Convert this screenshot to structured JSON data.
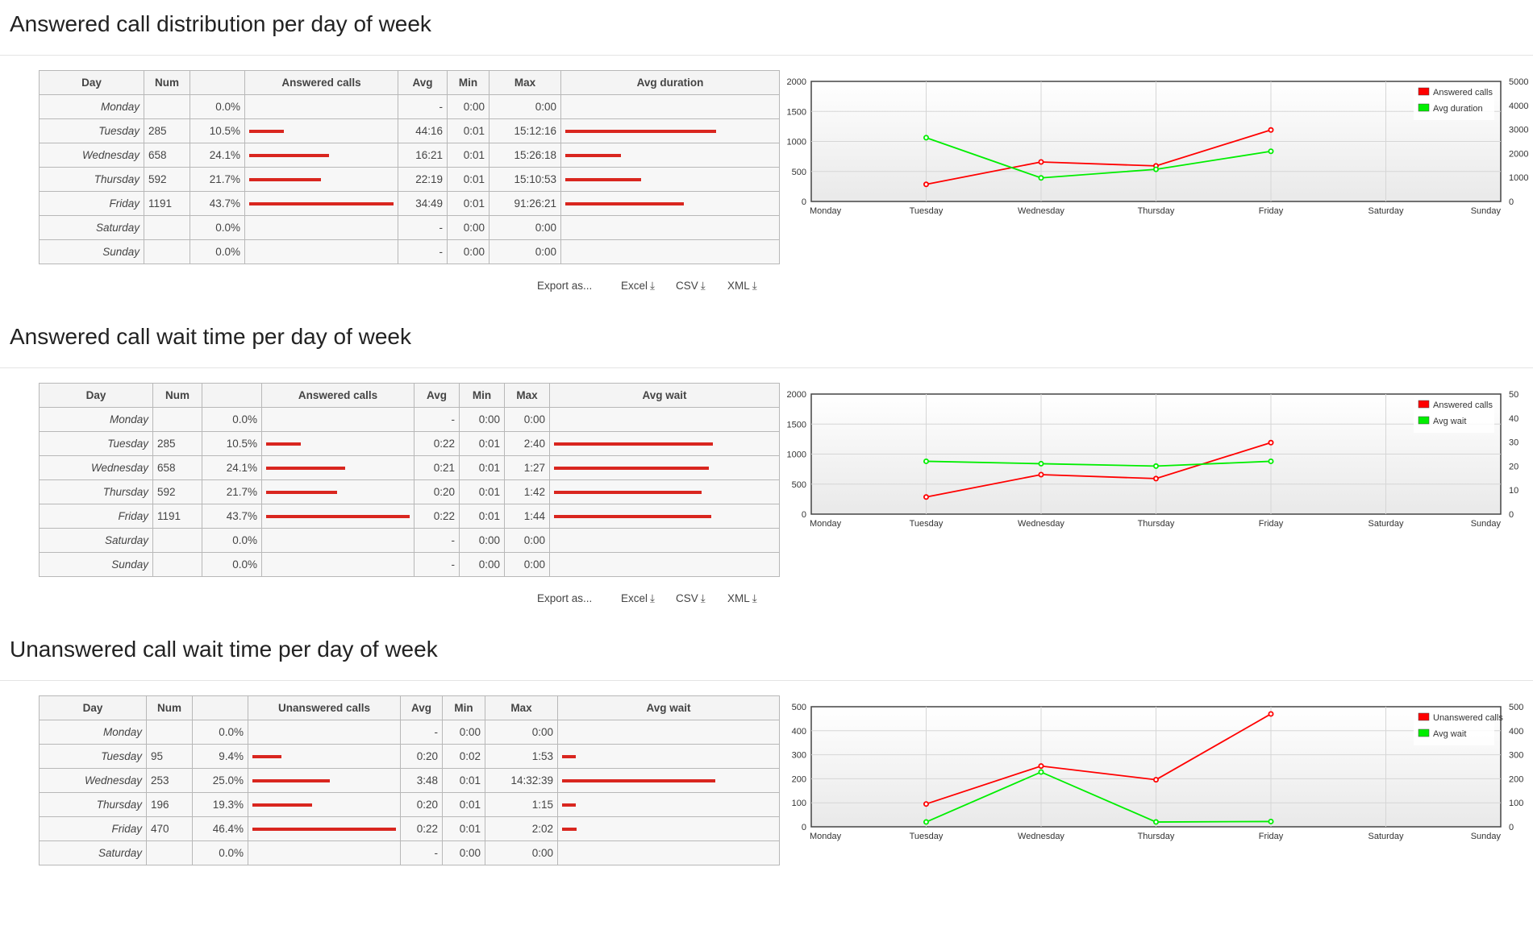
{
  "sections": [
    {
      "title": "Answered call distribution per day of week",
      "headers": [
        "Day",
        "Num",
        "",
        "Answered calls",
        "Avg",
        "Min",
        "Max",
        "Avg duration"
      ],
      "colwidths": [
        130,
        57,
        68,
        190,
        61,
        52,
        89,
        271
      ],
      "rows": [
        {
          "day": "Monday",
          "num": "",
          "pct": "0.0%",
          "bar": 0,
          "avg": "-",
          "min": "0:00",
          "max": "0:00",
          "bar2": 0
        },
        {
          "day": "Tuesday",
          "num": "285",
          "pct": "10.5%",
          "bar": 0.239,
          "avg": "44:16",
          "min": "0:01",
          "max": "15:12:16",
          "bar2": 1.0
        },
        {
          "day": "Wednesday",
          "num": "658",
          "pct": "24.1%",
          "bar": 0.552,
          "avg": "16:21",
          "min": "0:01",
          "max": "15:26:18",
          "bar2": 0.37
        },
        {
          "day": "Thursday",
          "num": "592",
          "pct": "21.7%",
          "bar": 0.497,
          "avg": "22:19",
          "min": "0:01",
          "max": "15:10:53",
          "bar2": 0.504
        },
        {
          "day": "Friday",
          "num": "1191",
          "pct": "43.7%",
          "bar": 1.0,
          "avg": "34:49",
          "min": "0:01",
          "max": "91:26:21",
          "bar2": 0.787
        },
        {
          "day": "Saturday",
          "num": "",
          "pct": "0.0%",
          "bar": 0,
          "avg": "-",
          "min": "0:00",
          "max": "0:00",
          "bar2": 0
        },
        {
          "day": "Sunday",
          "num": "",
          "pct": "0.0%",
          "bar": 0,
          "avg": "-",
          "min": "0:00",
          "max": "0:00",
          "bar2": 0
        }
      ],
      "export": {
        "label": "Export as...",
        "excel": "Excel",
        "csv": "CSV",
        "xml": "XML"
      },
      "chart_data": {
        "type": "line",
        "x": [
          "Monday",
          "Tuesday",
          "Wednesday",
          "Thursday",
          "Friday",
          "Saturday",
          "Sunday"
        ],
        "y_left_ticks": [
          "0",
          "500",
          "1000",
          "1500",
          "2000"
        ],
        "y_left_max": 2000,
        "y_right_ticks": [
          "0",
          "1000",
          "2000",
          "3000",
          "4000",
          "5000"
        ],
        "y_right_max": 5000,
        "series": [
          {
            "name": "Answered calls",
            "axis": "left",
            "color": "#ff0000",
            "values": [
              null,
              285,
              658,
              592,
              1191,
              null,
              null
            ]
          },
          {
            "name": "Avg duration",
            "axis": "right",
            "color": "#00ee00",
            "values": [
              null,
              2656,
              981,
              1339,
              2089,
              null,
              null
            ]
          }
        ],
        "legend": "top-right"
      }
    },
    {
      "title": "Answered call wait time per day of week",
      "headers": [
        "Day",
        "Num",
        "",
        "Answered calls",
        "Avg",
        "Min",
        "Max",
        "Avg wait"
      ],
      "colwidths": [
        141,
        61,
        74,
        189,
        56,
        56,
        56,
        285
      ],
      "rows": [
        {
          "day": "Monday",
          "num": "",
          "pct": "0.0%",
          "bar": 0,
          "avg": "-",
          "min": "0:00",
          "max": "0:00",
          "bar2": 0
        },
        {
          "day": "Tuesday",
          "num": "285",
          "pct": "10.5%",
          "bar": 0.239,
          "avg": "0:22",
          "min": "0:01",
          "max": "2:40",
          "bar2": 1.0
        },
        {
          "day": "Wednesday",
          "num": "658",
          "pct": "24.1%",
          "bar": 0.552,
          "avg": "0:21",
          "min": "0:01",
          "max": "1:27",
          "bar2": 0.972
        },
        {
          "day": "Thursday",
          "num": "592",
          "pct": "21.7%",
          "bar": 0.497,
          "avg": "0:20",
          "min": "0:01",
          "max": "1:42",
          "bar2": 0.93
        },
        {
          "day": "Friday",
          "num": "1191",
          "pct": "43.7%",
          "bar": 1.0,
          "avg": "0:22",
          "min": "0:01",
          "max": "1:44",
          "bar2": 0.986
        },
        {
          "day": "Saturday",
          "num": "",
          "pct": "0.0%",
          "bar": 0,
          "avg": "-",
          "min": "0:00",
          "max": "0:00",
          "bar2": 0
        },
        {
          "day": "Sunday",
          "num": "",
          "pct": "0.0%",
          "bar": 0,
          "avg": "-",
          "min": "0:00",
          "max": "0:00",
          "bar2": 0
        }
      ],
      "export": {
        "label": "Export as...",
        "excel": "Excel",
        "csv": "CSV",
        "xml": "XML"
      },
      "chart_data": {
        "type": "line",
        "x": [
          "Monday",
          "Tuesday",
          "Wednesday",
          "Thursday",
          "Friday",
          "Saturday",
          "Sunday"
        ],
        "y_left_ticks": [
          "0",
          "500",
          "1000",
          "1500",
          "2000"
        ],
        "y_left_max": 2000,
        "y_right_ticks": [
          "0",
          "10",
          "20",
          "30",
          "40",
          "50"
        ],
        "y_right_max": 50,
        "series": [
          {
            "name": "Answered calls",
            "axis": "left",
            "color": "#ff0000",
            "values": [
              null,
              285,
              658,
              592,
              1191,
              null,
              null
            ]
          },
          {
            "name": "Avg wait",
            "axis": "right",
            "color": "#00ee00",
            "values": [
              null,
              22,
              21,
              20,
              22,
              null,
              null
            ]
          }
        ],
        "legend": "top-right"
      }
    },
    {
      "title": "Unanswered call wait time per day of week",
      "headers": [
        "Day",
        "Num",
        "",
        "Unanswered calls",
        "Avg",
        "Min",
        "Max",
        "Avg wait"
      ],
      "colwidths": [
        133,
        57,
        69,
        189,
        52,
        53,
        90,
        275
      ],
      "rows": [
        {
          "day": "Monday",
          "num": "",
          "pct": "0.0%",
          "bar": 0,
          "avg": "-",
          "min": "0:00",
          "max": "0:00",
          "bar2": 0
        },
        {
          "day": "Tuesday",
          "num": "95",
          "pct": "9.4%",
          "bar": 0.202,
          "avg": "0:20",
          "min": "0:02",
          "max": "1:53",
          "bar2": 0.088
        },
        {
          "day": "Wednesday",
          "num": "253",
          "pct": "25.0%",
          "bar": 0.538,
          "avg": "3:48",
          "min": "0:01",
          "max": "14:32:39",
          "bar2": 1.0
        },
        {
          "day": "Thursday",
          "num": "196",
          "pct": "19.3%",
          "bar": 0.417,
          "avg": "0:20",
          "min": "0:01",
          "max": "1:15",
          "bar2": 0.088
        },
        {
          "day": "Friday",
          "num": "470",
          "pct": "46.4%",
          "bar": 1.0,
          "avg": "0:22",
          "min": "0:01",
          "max": "2:02",
          "bar2": 0.096
        }
      ],
      "export": null,
      "chart_data": {
        "type": "line",
        "x": [
          "Monday",
          "Tuesday",
          "Wednesday",
          "Thursday",
          "Friday",
          "Saturday",
          "Sunday"
        ],
        "y_left_ticks": [
          "0",
          "100",
          "200",
          "300",
          "400",
          "500"
        ],
        "y_left_max": 500,
        "y_right_ticks": [
          "0",
          "100",
          "200",
          "300",
          "400",
          "500"
        ],
        "y_right_max": 500,
        "series": [
          {
            "name": "Unanswered calls",
            "axis": "left",
            "color": "#ff0000",
            "values": [
              null,
              95,
              253,
              196,
              470,
              null,
              null
            ]
          },
          {
            "name": "Avg wait",
            "axis": "right",
            "color": "#00ee00",
            "values": [
              null,
              20,
              228,
              20,
              22,
              null,
              null
            ]
          }
        ],
        "legend": "top-right"
      }
    }
  ],
  "extra_rows_section3": [
    {
      "day": "Saturday",
      "num": "",
      "pct": "0.0%",
      "bar": 0,
      "avg": "-",
      "min": "0:00",
      "max": "0:00",
      "bar2": 0
    }
  ]
}
